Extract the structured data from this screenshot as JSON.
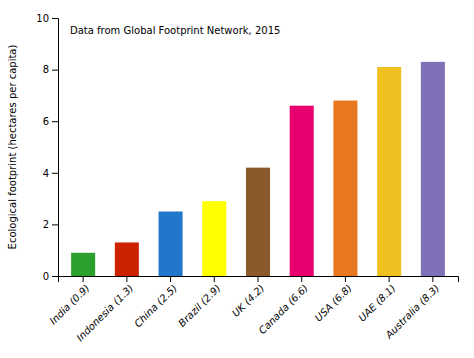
{
  "chart_data": {
    "type": "bar",
    "categories": [
      "India (0.9)",
      "Indonesia (1.3)",
      "China (2.5)",
      "Brazil (2.9)",
      "UK (4.2)",
      "Canada (6.6)",
      "USA (6.8)",
      "UAE (8.1)",
      "Australia (8.3)"
    ],
    "values": [
      0.9,
      1.3,
      2.5,
      2.9,
      4.2,
      6.6,
      6.8,
      8.1,
      8.3
    ],
    "colors": [
      "#2ca02c",
      "#cc2200",
      "#2277cc",
      "#ffff00",
      "#8B5A2B",
      "#e8006e",
      "#e87820",
      "#f0c020",
      "#8070b8"
    ],
    "ylabel": "Ecological footprint (hectares per capita)",
    "annotation": "Data from Global Footprint Network, 2015",
    "ylim": [
      0,
      10
    ],
    "yticks": [
      0,
      2,
      4,
      6,
      8,
      10
    ]
  }
}
